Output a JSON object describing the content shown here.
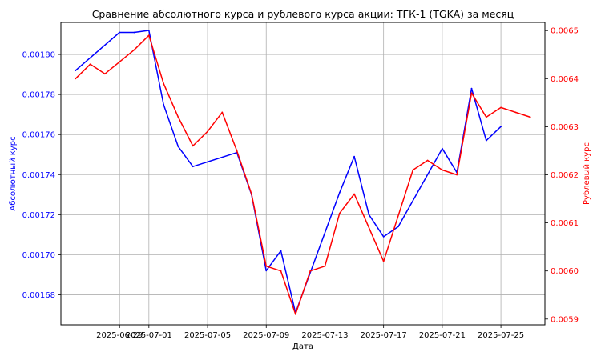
{
  "chart_data": {
    "type": "line",
    "title": "Сравнение абсолютного курса и рублевого курса акции: ТГК-1 (TGKA) за месяц",
    "xlabel": "Дата",
    "ylabel_left": "Абсолютный курс",
    "ylabel_right": "Рублевый курс",
    "x_tick_labels": [
      "2025-06-29",
      "2025-07-01",
      "2025-07-05",
      "2025-07-09",
      "2025-07-13",
      "2025-07-17",
      "2025-07-21",
      "2025-07-25"
    ],
    "y_left_ticks": [
      "0.00168",
      "0.00170",
      "0.00172",
      "0.00174",
      "0.00176",
      "0.00178",
      "0.00180"
    ],
    "y_right_ticks": [
      "0.0059",
      "0.0060",
      "0.0061",
      "0.0062",
      "0.0063",
      "0.0064",
      "0.0065"
    ],
    "ylim_left": [
      0.001665,
      0.001816
    ],
    "ylim_right": [
      0.005888,
      0.006517
    ],
    "xlim": [
      "2025-06-25",
      "2025-07-28"
    ],
    "grid": true,
    "colors": {
      "absolute": "#0000ff",
      "ruble": "#ff0000",
      "axis": "#000000",
      "grid": "#b0b0b0"
    },
    "series": [
      {
        "axis": "left",
        "color": "#0000ff",
        "x": [
          "2025-06-26",
          "2025-06-29",
          "2025-06-30",
          "2025-07-01",
          "2025-07-02",
          "2025-07-03",
          "2025-07-04",
          "2025-07-07",
          "2025-07-08",
          "2025-07-09",
          "2025-07-10",
          "2025-07-11",
          "2025-07-14",
          "2025-07-15",
          "2025-07-16",
          "2025-07-17",
          "2025-07-18",
          "2025-07-21",
          "2025-07-22",
          "2025-07-23",
          "2025-07-24",
          "2025-07-25"
        ],
        "values": [
          0.001792,
          0.001811,
          0.001811,
          0.001812,
          0.001775,
          0.001754,
          0.001744,
          0.001751,
          0.00173,
          0.001692,
          0.001702,
          0.001671,
          0.001731,
          0.001749,
          0.00172,
          0.001709,
          0.001714,
          0.001753,
          0.001741,
          0.001783,
          0.001757,
          0.001764
        ]
      },
      {
        "axis": "right",
        "color": "#ff0000",
        "x": [
          "2025-06-26",
          "2025-06-27",
          "2025-06-28",
          "2025-06-30",
          "2025-07-01",
          "2025-07-02",
          "2025-07-03",
          "2025-07-04",
          "2025-07-05",
          "2025-07-06",
          "2025-07-07",
          "2025-07-08",
          "2025-07-09",
          "2025-07-10",
          "2025-07-11",
          "2025-07-12",
          "2025-07-13",
          "2025-07-14",
          "2025-07-15",
          "2025-07-17",
          "2025-07-19",
          "2025-07-20",
          "2025-07-21",
          "2025-07-22",
          "2025-07-23",
          "2025-07-24",
          "2025-07-25",
          "2025-07-26",
          "2025-07-27"
        ],
        "values": [
          0.0064,
          0.00643,
          0.00641,
          0.00646,
          0.00649,
          0.00639,
          0.00632,
          0.00626,
          0.00629,
          0.00633,
          0.00625,
          0.00616,
          0.00601,
          0.006,
          0.00591,
          0.006,
          0.00601,
          0.00612,
          0.00616,
          0.00602,
          0.00621,
          0.00623,
          0.00621,
          0.0062,
          0.00637,
          0.00632,
          0.00634,
          0.00633,
          0.00632
        ]
      }
    ]
  }
}
